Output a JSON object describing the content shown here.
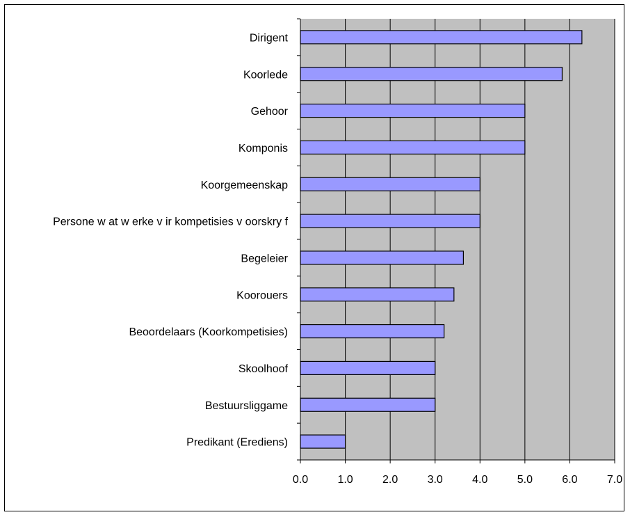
{
  "chart_data": {
    "type": "bar",
    "orientation": "horizontal",
    "title": "",
    "xlabel": "",
    "ylabel": "",
    "xlim": [
      0,
      7
    ],
    "x_ticks": [
      "0.0",
      "1.0",
      "2.0",
      "3.0",
      "4.0",
      "5.0",
      "6.0",
      "7.0"
    ],
    "grid": "vertical",
    "plot_background": "#c0c0c0",
    "bar_color": "#9999ff",
    "categories": [
      "Dirigent",
      "Koorlede",
      "Gehoor",
      "Komponis",
      "Koorgemeenskap",
      "Persone w at w erke v ir kompetisies v oorskry f",
      "Begeleier",
      "Koorouers",
      "Beoordelaars (Koorkompetisies)",
      "Skoolhoof",
      "Bestuursliggame",
      "Predikant (Erediens)"
    ],
    "values": [
      6.27,
      5.83,
      5.0,
      5.0,
      4.0,
      4.0,
      3.63,
      3.42,
      3.2,
      3.0,
      3.0,
      1.0
    ]
  }
}
